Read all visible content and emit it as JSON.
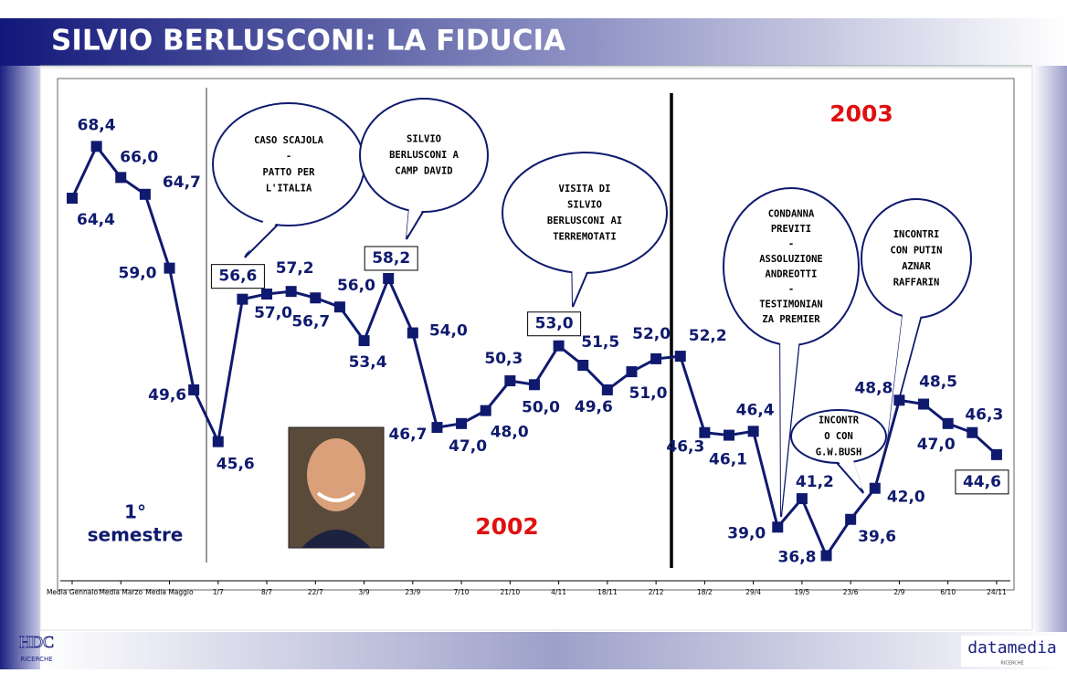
{
  "title": "SILVIO BERLUSCONI: LA FIDUCIA",
  "chart_data": {
    "type": "line",
    "categories": [
      "Media Gennaio",
      null,
      "Media Marzo",
      null,
      "Media Maggio",
      null,
      "1/7",
      null,
      "8/7",
      null,
      "22/7",
      null,
      "3/9",
      null,
      "23/9",
      null,
      "7/10",
      null,
      "21/10",
      null,
      "4/11",
      null,
      "18/11",
      null,
      "2/12",
      null,
      "18/2",
      null,
      "29/4",
      null,
      "19/5",
      null,
      "23/6",
      null,
      "2/9",
      null,
      "6/10",
      null,
      "24/11"
    ],
    "series": [
      {
        "color": "#0f1a6e",
        "values": [
          64.4,
          68.4,
          66.0,
          64.7,
          59.0,
          49.6,
          45.6,
          56.6,
          57.0,
          57.2,
          56.7,
          56.0,
          53.4,
          58.2,
          54.0,
          46.7,
          47.0,
          48.0,
          50.3,
          50.0,
          53.0,
          51.5,
          49.6,
          51.0,
          52.0,
          52.2,
          46.3,
          46.1,
          46.4,
          39.0,
          41.2,
          36.8,
          39.6,
          42.0,
          48.8,
          48.5,
          47.0,
          46.3,
          44.6
        ],
        "value_labels": [
          "64,4",
          "68,4",
          "66,0",
          "64,7",
          "59,0",
          "49,6",
          "45,6",
          "56,6",
          "57,0",
          "57,2",
          "56,7",
          "56,0",
          "53,4",
          "58,2",
          "54,0",
          "46,7",
          "47,0",
          "48,0",
          "50,3",
          "50,0",
          "53,0",
          "51,5",
          "49,6",
          "51,0",
          "52,0",
          "52,2",
          "46,3",
          "46,1",
          "46,4",
          "39,0",
          "41,2",
          "36,8",
          "39,6",
          "42,0",
          "48,8",
          "48,5",
          "47,0",
          "46,3",
          "44,6"
        ]
      }
    ],
    "ylim": [
      35,
      73.5
    ],
    "annotations": [
      {
        "lines": [
          "CASO SCAJOLA",
          "-",
          "PATTO PER",
          "L'ITALIA"
        ]
      },
      {
        "lines": [
          "SILVIO",
          "BERLUSCONI A",
          "CAMP DAVID"
        ]
      },
      {
        "lines": [
          "VISITA DI",
          "SILVIO",
          "BERLUSCONI AI",
          "TERREMOTATI"
        ]
      },
      {
        "lines": [
          "CONDANNA",
          "PREVITI",
          "-",
          "ASSOLUZIONE",
          "ANDREOTTI",
          "-",
          "TESTIMONIAN",
          "ZA PREMIER"
        ]
      },
      {
        "lines": [
          "INCONTRI",
          "CON PUTIN",
          "AZNAR",
          "RAFFARIN"
        ]
      },
      {
        "lines": [
          "INCONTR",
          "O CON",
          "G.W.BUSH"
        ]
      }
    ],
    "period_labels": {
      "first": [
        "1°",
        "semestre"
      ],
      "y2002": "2002",
      "y2003": "2003"
    }
  },
  "logos": {
    "left": "HDC",
    "left_sub": "RICERCHE",
    "right": "datamedia",
    "right_sub": "RICERCHE"
  }
}
